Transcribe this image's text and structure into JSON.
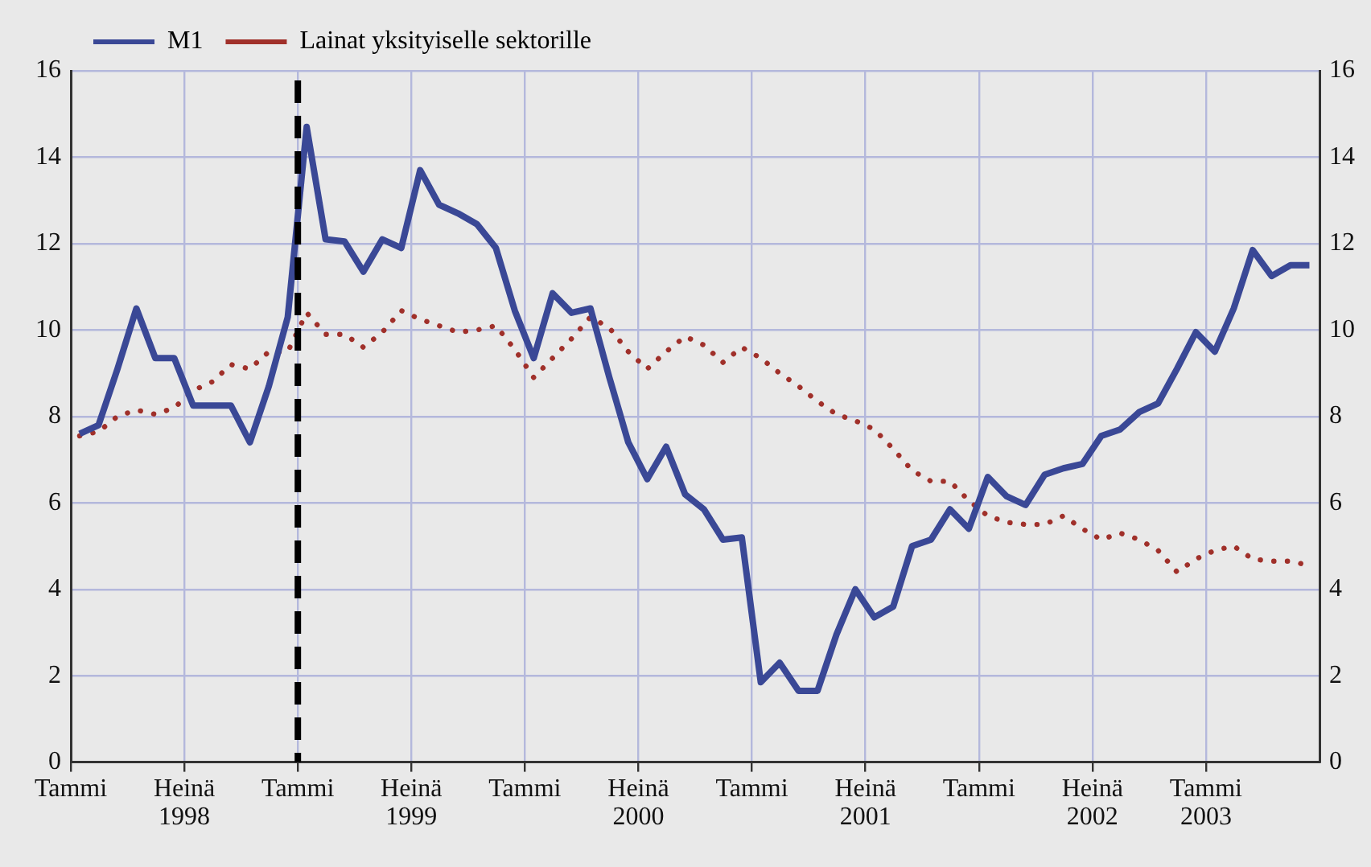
{
  "chart_data": {
    "type": "line",
    "x": [
      "1998-01-15",
      "1998-02-15",
      "1998-03-15",
      "1998-04-15",
      "1998-05-15",
      "1998-06-15",
      "1998-07-15",
      "1998-08-15",
      "1998-09-15",
      "1998-10-15",
      "1998-11-15",
      "1998-12-15",
      "1999-01-15",
      "1999-02-15",
      "1999-03-15",
      "1999-04-15",
      "1999-05-15",
      "1999-06-15",
      "1999-07-15",
      "1999-08-15",
      "1999-09-15",
      "1999-10-15",
      "1999-11-15",
      "1999-12-15",
      "2000-01-15",
      "2000-02-15",
      "2000-03-15",
      "2000-04-15",
      "2000-05-15",
      "2000-06-15",
      "2000-07-15",
      "2000-08-15",
      "2000-09-15",
      "2000-10-15",
      "2000-11-15",
      "2000-12-15",
      "2001-01-15",
      "2001-02-15",
      "2001-03-15",
      "2001-04-15",
      "2001-05-15",
      "2001-06-15",
      "2001-07-15",
      "2001-08-15",
      "2001-09-15",
      "2001-10-15",
      "2001-11-15",
      "2001-12-15",
      "2002-01-15",
      "2002-02-15",
      "2002-03-15",
      "2002-04-15",
      "2002-05-15",
      "2002-06-15",
      "2002-07-15",
      "2002-08-15",
      "2002-09-15",
      "2002-10-15",
      "2002-11-15",
      "2002-12-15",
      "2003-01-15",
      "2003-02-15",
      "2003-03-15",
      "2003-04-15",
      "2003-05-15",
      "2003-06-15"
    ],
    "series": [
      {
        "name": "M1",
        "color": "#3a4896",
        "line_style": "solid",
        "values": [
          7.6,
          7.8,
          9.1,
          10.5,
          9.35,
          9.35,
          8.25,
          8.25,
          8.25,
          7.4,
          8.7,
          10.3,
          14.7,
          12.1,
          12.05,
          11.35,
          12.1,
          11.9,
          13.7,
          12.9,
          12.7,
          12.45,
          11.9,
          10.45,
          9.35,
          10.85,
          10.4,
          10.5,
          8.9,
          7.4,
          6.55,
          7.3,
          6.2,
          5.85,
          5.15,
          5.2,
          1.85,
          2.3,
          1.65,
          1.65,
          2.95,
          4.0,
          3.35,
          3.6,
          5.0,
          5.15,
          5.85,
          5.4,
          6.6,
          6.15,
          5.95,
          6.65,
          6.8,
          6.9,
          7.55,
          7.7,
          8.1,
          8.3,
          9.1,
          9.95,
          9.5,
          10.5,
          11.85,
          11.25,
          11.5,
          11.5
        ]
      },
      {
        "name": "Lainat yksityiselle sektorille",
        "color": "#a0302a",
        "line_style": "dotted",
        "values": [
          7.55,
          7.65,
          8.0,
          8.15,
          8.05,
          8.2,
          8.6,
          8.8,
          9.2,
          9.1,
          9.5,
          9.5,
          10.4,
          9.9,
          9.9,
          9.6,
          9.95,
          10.45,
          10.25,
          10.1,
          9.95,
          10.0,
          10.1,
          9.55,
          8.9,
          9.35,
          9.8,
          10.3,
          10.05,
          9.5,
          9.1,
          9.5,
          9.85,
          9.65,
          9.25,
          9.6,
          9.35,
          9.0,
          8.7,
          8.35,
          8.05,
          7.9,
          7.7,
          7.25,
          6.75,
          6.5,
          6.5,
          6.05,
          5.7,
          5.55,
          5.5,
          5.5,
          5.7,
          5.4,
          5.15,
          5.3,
          5.15,
          4.9,
          4.4,
          4.7,
          4.9,
          5.0,
          4.7,
          4.65,
          4.65,
          4.55
        ]
      }
    ],
    "xlim": [
      "1998-01",
      "2003-07"
    ],
    "xticks": [
      {
        "value": "1998-01",
        "label": "Tammi"
      },
      {
        "value": "1998-07",
        "label": "Heinä\n1998"
      },
      {
        "value": "1999-01",
        "label": "Tammi"
      },
      {
        "value": "1999-07",
        "label": "Heinä\n1999"
      },
      {
        "value": "2000-01",
        "label": "Tammi"
      },
      {
        "value": "2000-07",
        "label": "Heinä\n2000"
      },
      {
        "value": "2001-01",
        "label": "Tammi"
      },
      {
        "value": "2001-07",
        "label": "Heinä\n2001"
      },
      {
        "value": "2002-01",
        "label": "Tammi"
      },
      {
        "value": "2002-07",
        "label": "Heinä\n2002"
      },
      {
        "value": "2003-01",
        "label": "Tammi\n2003"
      }
    ],
    "ylim": [
      0,
      16
    ],
    "yticks": [
      0,
      2,
      4,
      6,
      8,
      10,
      12,
      14,
      16
    ],
    "y2lim": [
      0,
      16
    ],
    "y2ticks": [
      0,
      2,
      4,
      6,
      8,
      10,
      12,
      14,
      16
    ],
    "grid": true,
    "legend": "top left",
    "marker": "none",
    "ref_lines": [
      {
        "axis": "x",
        "value": "1999-01",
        "color": "#000000",
        "line_style": "dashed"
      }
    ]
  }
}
